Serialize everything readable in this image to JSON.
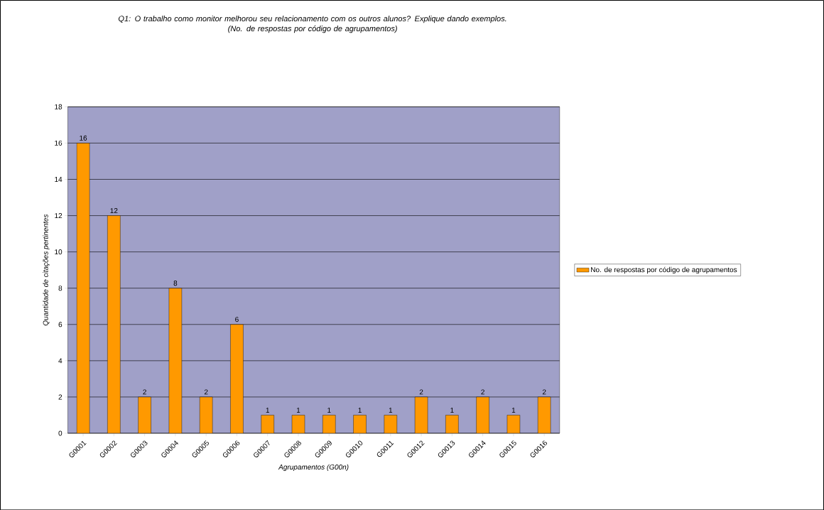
{
  "chart_data": {
    "type": "bar",
    "title": "Q1: O trabalho como monitor melhorou seu relacionamento com os outros alunos? Explique dando exemplos.",
    "subtitle": "(No. de respostas por código de agrupamentos)",
    "xlabel": "Agrupamentos (G00n)",
    "ylabel": "Quantidade de citações pertinentes",
    "categories": [
      "G0001",
      "G0002",
      "G0003",
      "G0004",
      "G0005",
      "G0006",
      "G0007",
      "G0008",
      "G0009",
      "G0010",
      "G0011",
      "G0012",
      "G0013",
      "G0014",
      "G0015",
      "G0016"
    ],
    "series": [
      {
        "name": "No. de respostas por código de agrupamentos",
        "color": "#ff9900",
        "values": [
          16,
          12,
          2,
          8,
          2,
          6,
          1,
          1,
          1,
          1,
          1,
          2,
          1,
          2,
          1,
          2
        ]
      }
    ],
    "ylim": [
      0,
      18
    ],
    "yticks": [
      0,
      2,
      4,
      6,
      8,
      10,
      12,
      14,
      16,
      18
    ],
    "grid": "y",
    "legend": "right",
    "data_labels": true
  }
}
